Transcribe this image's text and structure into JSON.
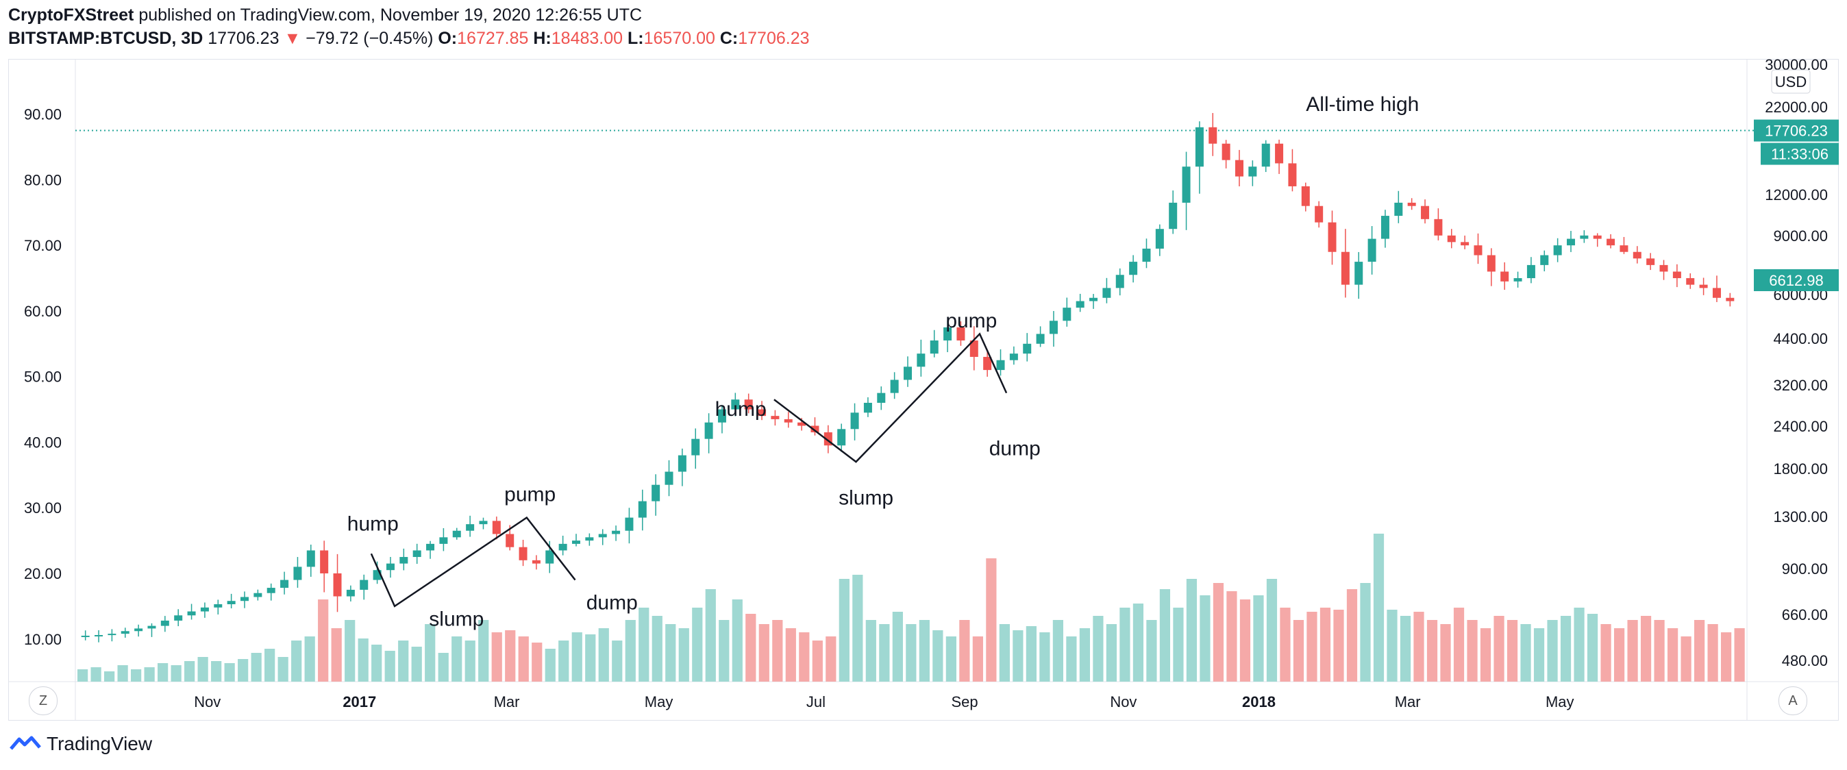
{
  "header": {
    "author": "CryptoFXStreet",
    "published_text": "published on TradingView.com, November 19, 2020 12:26:55 UTC",
    "symbol": "BITSTAMP:BTCUSD, 3D",
    "last": "17706.23",
    "change": "−79.72 (−0.45%)",
    "o_label": "O:",
    "o_value": "16727.85",
    "h_label": "H:",
    "h_value": "18483.00",
    "l_label": "L:",
    "l_value": "16570.00",
    "c_label": "C:",
    "c_value": "17706.23"
  },
  "colors": {
    "up": "#26a69a",
    "down": "#ef5350",
    "price_line": "#26a69a",
    "vol_up": "#9fd8d2",
    "vol_down": "#f5a9a8"
  },
  "buttons": {
    "left": "Z",
    "right": "A"
  },
  "logo_text": "TradingView",
  "right_axis": {
    "unit": "USD",
    "ticks": [
      "30000.00",
      "22000.00",
      "12000.00",
      "9000.00",
      "6000.00",
      "4400.00",
      "3200.00",
      "2400.00",
      "1800.00",
      "1300.00",
      "900.00",
      "660.00",
      "480.00"
    ],
    "price_tag": "17706.23",
    "countdown_tag": "11:33:06",
    "ref_tag": "6612.98"
  },
  "chart_data": {
    "type": "candlestick",
    "left_axis_ticks": [
      "90.00",
      "80.00",
      "70.00",
      "60.00",
      "50.00",
      "40.00",
      "30.00",
      "20.00",
      "10.00"
    ],
    "left_axis_range": [
      3.5,
      98
    ],
    "x_ticks": [
      {
        "label": "Nov",
        "bold": false
      },
      {
        "label": "2017",
        "bold": true
      },
      {
        "label": "Mar",
        "bold": false
      },
      {
        "label": "May",
        "bold": false
      },
      {
        "label": "Jul",
        "bold": false
      },
      {
        "label": "Sep",
        "bold": false
      },
      {
        "label": "Nov",
        "bold": false
      },
      {
        "label": "2018",
        "bold": true
      },
      {
        "label": "Mar",
        "bold": false
      },
      {
        "label": "May",
        "bold": false
      }
    ],
    "current_price_level": 87.5,
    "path_points": [
      10.5,
      10.6,
      10.8,
      11.2,
      11.6,
      12.0,
      12.8,
      13.6,
      14.2,
      14.8,
      15.3,
      15.8,
      16.4,
      17.0,
      17.8,
      19.0,
      21.0,
      23.5,
      20.0,
      16.5,
      17.5,
      19.0,
      20.5,
      21.5,
      22.5,
      23.5,
      24.5,
      25.5,
      26.5,
      27.5,
      28.0,
      26.0,
      24.0,
      22.0,
      21.5,
      23.5,
      24.5,
      25.0,
      25.5,
      26.0,
      26.5,
      28.5,
      31.0,
      33.5,
      35.5,
      38.0,
      40.5,
      43.0,
      45.0,
      46.5,
      45.0,
      44.0,
      43.5,
      43.0,
      42.5,
      41.5,
      39.5,
      42.0,
      44.5,
      46.0,
      47.5,
      49.5,
      51.5,
      53.5,
      55.5,
      57.5,
      55.5,
      53.0,
      51.0,
      52.5,
      53.5,
      55.0,
      56.5,
      58.5,
      60.5,
      61.5,
      62.0,
      63.5,
      65.5,
      67.5,
      69.5,
      72.5,
      76.5,
      82.0,
      88.0,
      85.5,
      83.0,
      80.5,
      82.0,
      85.5,
      82.5,
      79.0,
      76.0,
      73.5,
      69.0,
      64.0,
      67.5,
      71.0,
      74.5,
      76.5,
      76.0,
      74.0,
      71.5,
      70.5,
      70.0,
      68.5,
      66.0,
      64.5,
      65.0,
      67.0,
      68.5,
      70.0,
      71.0,
      71.5,
      71.0,
      70.0,
      69.0,
      68.0,
      67.0,
      66.0,
      65.0,
      64.0,
      63.5,
      62.0,
      61.5
    ],
    "volumes": [
      0.06,
      0.07,
      0.05,
      0.08,
      0.06,
      0.07,
      0.09,
      0.08,
      0.1,
      0.12,
      0.1,
      0.09,
      0.11,
      0.14,
      0.16,
      0.12,
      0.2,
      0.22,
      0.4,
      0.26,
      0.3,
      0.21,
      0.18,
      0.15,
      0.2,
      0.17,
      0.28,
      0.14,
      0.22,
      0.2,
      0.3,
      0.24,
      0.25,
      0.22,
      0.19,
      0.16,
      0.2,
      0.24,
      0.23,
      0.26,
      0.2,
      0.3,
      0.36,
      0.32,
      0.28,
      0.26,
      0.36,
      0.45,
      0.3,
      0.4,
      0.33,
      0.28,
      0.3,
      0.26,
      0.24,
      0.2,
      0.22,
      0.5,
      0.52,
      0.3,
      0.28,
      0.34,
      0.28,
      0.3,
      0.25,
      0.22,
      0.3,
      0.22,
      0.6,
      0.28,
      0.25,
      0.27,
      0.24,
      0.3,
      0.22,
      0.26,
      0.32,
      0.28,
      0.36,
      0.38,
      0.3,
      0.45,
      0.36,
      0.5,
      0.42,
      0.48,
      0.44,
      0.4,
      0.42,
      0.5,
      0.36,
      0.3,
      0.34,
      0.36,
      0.35,
      0.45,
      0.48,
      0.72,
      0.35,
      0.32,
      0.34,
      0.3,
      0.28,
      0.36,
      0.3,
      0.26,
      0.32,
      0.3,
      0.28,
      0.26,
      0.3,
      0.32,
      0.36,
      0.33,
      0.28,
      0.26,
      0.3,
      0.32,
      0.3,
      0.26,
      0.22,
      0.3,
      0.28,
      0.24,
      0.26
    ],
    "annotations": [
      {
        "text": "hump",
        "x": 0.178,
        "y": 26.5
      },
      {
        "text": "slump",
        "x": 0.228,
        "y": 12.0
      },
      {
        "text": "pump",
        "x": 0.272,
        "y": 31.0
      },
      {
        "text": "dump",
        "x": 0.321,
        "y": 14.5
      },
      {
        "text": "hump",
        "x": 0.398,
        "y": 44.0
      },
      {
        "text": "slump",
        "x": 0.473,
        "y": 30.5
      },
      {
        "text": "pump",
        "x": 0.536,
        "y": 57.5
      },
      {
        "text": "dump",
        "x": 0.562,
        "y": 38.0
      },
      {
        "text": "All-time high",
        "x": 0.77,
        "y": 90.5
      }
    ],
    "trend_lines": [
      [
        [
          0.177,
          23.0
        ],
        [
          0.191,
          15.0
        ],
        [
          0.27,
          28.5
        ],
        [
          0.299,
          19.0
        ]
      ],
      [
        [
          0.418,
          46.5
        ],
        [
          0.467,
          37.0
        ],
        [
          0.541,
          56.5
        ],
        [
          0.557,
          47.5
        ]
      ]
    ]
  }
}
